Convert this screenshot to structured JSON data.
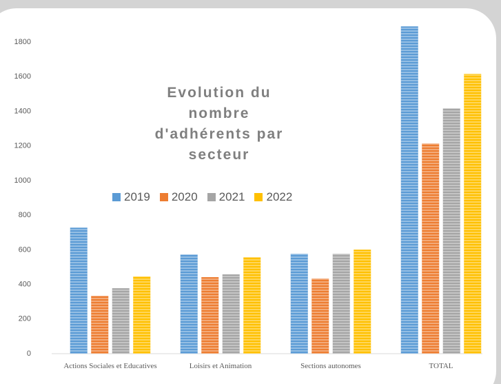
{
  "chart_data": {
    "type": "bar",
    "title": "Evolution du nombre d'adhérents par secteur",
    "categories": [
      "Actions Sociales et Educatives",
      "Loisirs et Animation",
      "Sections autonomes",
      "TOTAL"
    ],
    "series": [
      {
        "name": "2019",
        "color": "#5b9bd5",
        "values": [
          728,
          573,
          577,
          1891
        ]
      },
      {
        "name": "2020",
        "color": "#ed7d31",
        "values": [
          334,
          442,
          434,
          1214
        ]
      },
      {
        "name": "2021",
        "color": "#a5a5a5",
        "values": [
          378,
          458,
          577,
          1417
        ]
      },
      {
        "name": "2022",
        "color": "#ffc000",
        "values": [
          446,
          557,
          601,
          1616
        ]
      }
    ],
    "ylim": [
      0,
      1900
    ],
    "yticks": [
      0,
      200,
      400,
      600,
      800,
      1000,
      1200,
      1400,
      1600,
      1800
    ],
    "grid": false
  }
}
